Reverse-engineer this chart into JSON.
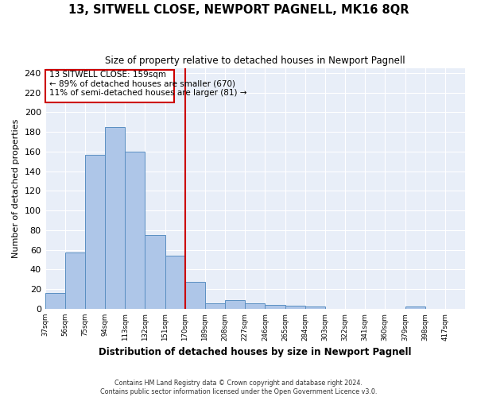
{
  "title": "13, SITWELL CLOSE, NEWPORT PAGNELL, MK16 8QR",
  "subtitle": "Size of property relative to detached houses in Newport Pagnell",
  "xlabel": "Distribution of detached houses by size in Newport Pagnell",
  "ylabel": "Number of detached properties",
  "bar_values": [
    16,
    57,
    157,
    185,
    160,
    75,
    54,
    27,
    6,
    9,
    6,
    4,
    3,
    2,
    0,
    0,
    0,
    0,
    2,
    0,
    0
  ],
  "x_labels": [
    "37sqm",
    "56sqm",
    "75sqm",
    "94sqm",
    "113sqm",
    "132sqm",
    "151sqm",
    "170sqm",
    "189sqm",
    "208sqm",
    "227sqm",
    "246sqm",
    "265sqm",
    "284sqm",
    "303sqm",
    "322sqm",
    "341sqm",
    "360sqm",
    "379sqm",
    "398sqm",
    "417sqm"
  ],
  "bar_color": "#aec6e8",
  "bar_edge_color": "#5a8fc2",
  "bg_color": "#e8eef8",
  "grid_color": "#ffffff",
  "vline_color": "#cc0000",
  "vline_x_index": 6.5,
  "annotation_line1": "13 SITWELL CLOSE: 159sqm",
  "annotation_line2": "← 89% of detached houses are smaller (670)",
  "annotation_line3": "11% of semi-detached houses are larger (81) →",
  "annotation_box_color": "#cc0000",
  "ylim": [
    0,
    245
  ],
  "yticks": [
    0,
    20,
    40,
    60,
    80,
    100,
    120,
    140,
    160,
    180,
    200,
    220,
    240
  ],
  "footer_line1": "Contains HM Land Registry data © Crown copyright and database right 2024.",
  "footer_line2": "Contains public sector information licensed under the Open Government Licence v3.0."
}
